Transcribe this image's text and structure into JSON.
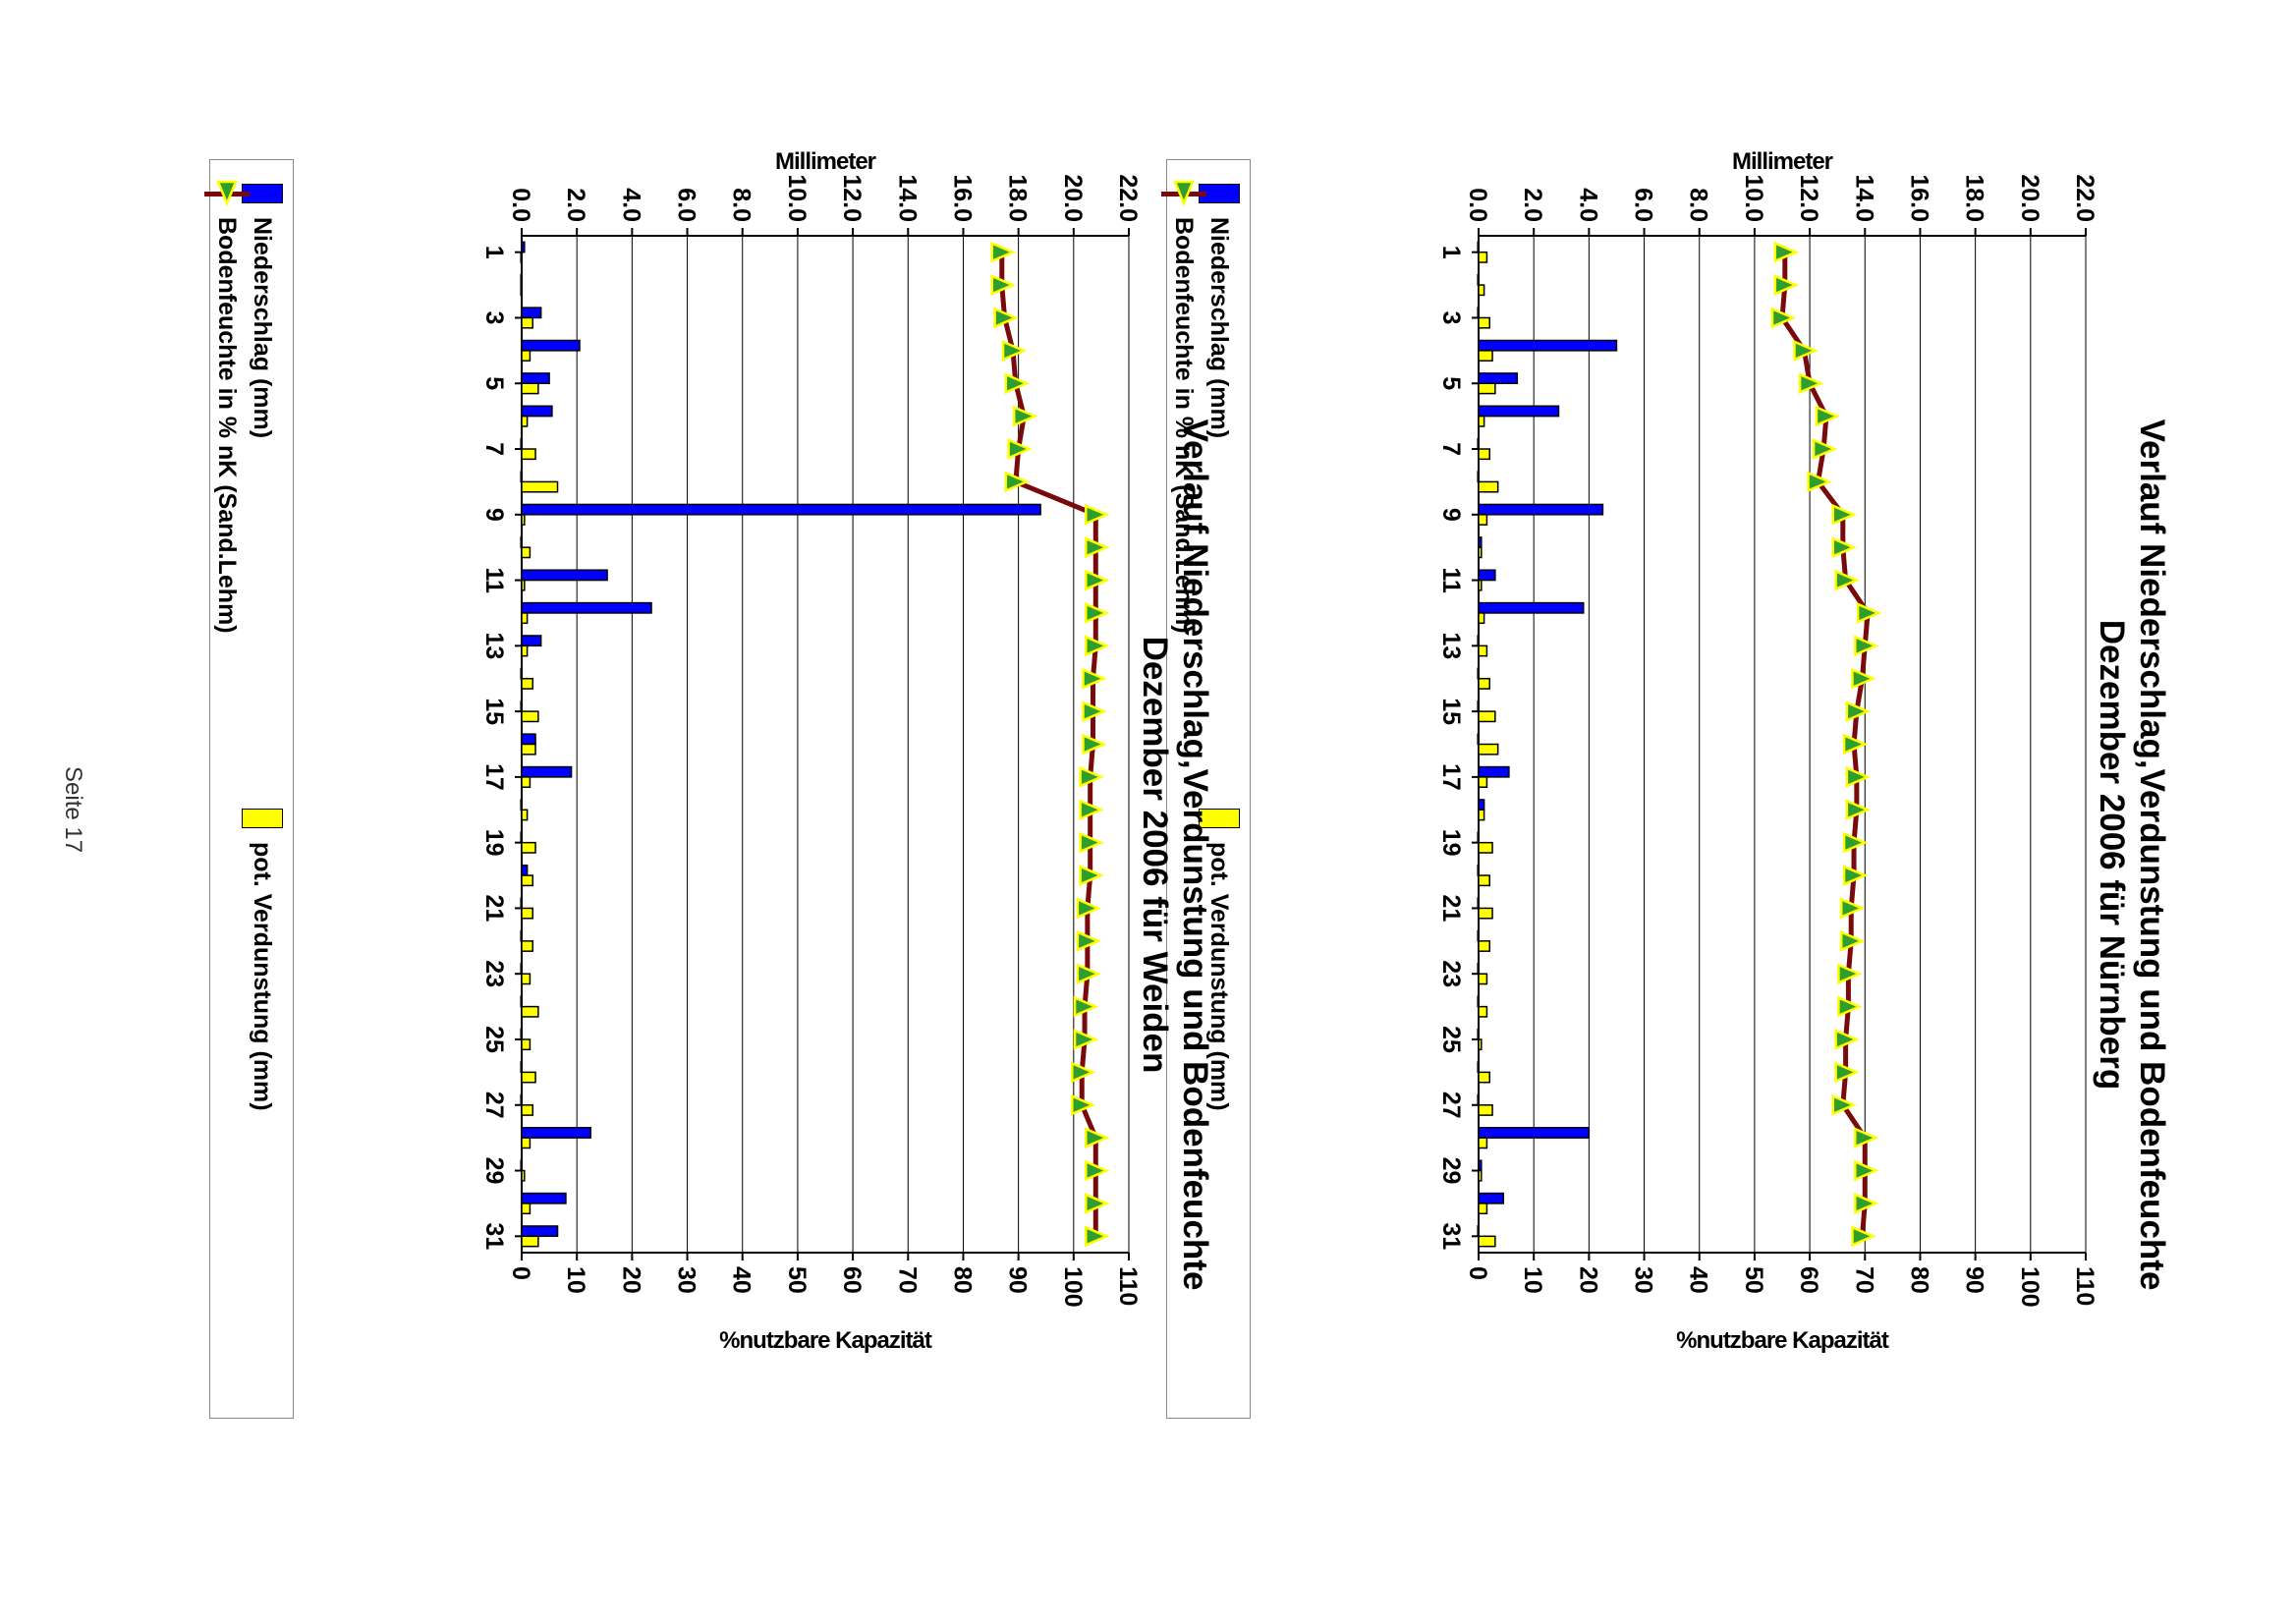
{
  "page": {
    "page_number": "Seite 17"
  },
  "legend": {
    "precip": "Niederschlag (mm)",
    "soil": "Bodenfeuchte in % nK (Sand.Lehm)",
    "evap": "pot. Verdunstung (mm)"
  },
  "colors": {
    "precip": "#0000ff",
    "evap": "#ffff00",
    "soil_line": "#7a0a0a",
    "marker_fill": "#2e9e2e",
    "marker_edge": "#ffff00"
  },
  "chart_data": [
    {
      "type": "bar",
      "title_line1": "Verlauf Niederschlag,Verdunstung und Bodenfeuchte",
      "title_line2": "Dezember 2006 für Nürnberg",
      "ylabel_left": "Millimeter",
      "ylabel_right": "%nutzbare Kapazität",
      "ylim_left": [
        0,
        22
      ],
      "ylim_right": [
        0,
        110
      ],
      "left_ticks": [
        "0.0",
        "2.0",
        "4.0",
        "6.0",
        "8.0",
        "10.0",
        "12.0",
        "14.0",
        "16.0",
        "18.0",
        "20.0",
        "22.0"
      ],
      "right_ticks": [
        "0",
        "10",
        "20",
        "30",
        "40",
        "50",
        "60",
        "70",
        "80",
        "90",
        "100",
        "110"
      ],
      "x_ticks": [
        "1",
        "3",
        "5",
        "7",
        "9",
        "11",
        "13",
        "15",
        "17",
        "19",
        "21",
        "23",
        "25",
        "27",
        "29",
        "31"
      ],
      "grid": true,
      "legend_position": "bottom",
      "categories": [
        1,
        2,
        3,
        4,
        5,
        6,
        7,
        8,
        9,
        10,
        11,
        12,
        13,
        14,
        15,
        16,
        17,
        18,
        19,
        20,
        21,
        22,
        23,
        24,
        25,
        26,
        27,
        28,
        29,
        30,
        31
      ],
      "series": [
        {
          "name": "Niederschlag (mm)",
          "type": "bar",
          "axis": "left",
          "values": [
            0,
            0,
            0,
            5.0,
            1.4,
            2.9,
            0,
            0,
            4.5,
            0.1,
            0.6,
            3.8,
            0,
            0,
            0,
            0,
            1.1,
            0.2,
            0,
            0,
            0,
            0,
            0,
            0,
            0,
            0,
            0,
            4.0,
            0.1,
            0.9,
            0
          ]
        },
        {
          "name": "pot. Verdunstung (mm)",
          "type": "bar",
          "axis": "left",
          "values": [
            0.3,
            0.2,
            0.4,
            0.5,
            0.6,
            0.2,
            0.4,
            0.7,
            0.3,
            0.1,
            0.1,
            0.2,
            0.3,
            0.4,
            0.6,
            0.7,
            0.3,
            0.2,
            0.5,
            0.4,
            0.5,
            0.4,
            0.3,
            0.3,
            0.1,
            0.4,
            0.5,
            0.3,
            0.1,
            0.3,
            0.6
          ]
        },
        {
          "name": "Bodenfeuchte in % nK (Sand.Lehm)",
          "type": "line",
          "axis": "right",
          "values": [
            55.5,
            55.5,
            55.0,
            59.0,
            60.0,
            63.0,
            62.5,
            61.5,
            66.0,
            66.0,
            66.5,
            70.5,
            70.0,
            69.5,
            68.5,
            68.0,
            68.5,
            68.5,
            68.0,
            68.0,
            67.5,
            67.5,
            67.0,
            67.0,
            66.5,
            66.5,
            66.0,
            70.0,
            70.0,
            70.0,
            69.5
          ]
        }
      ]
    },
    {
      "type": "bar",
      "title_line1": "Verlauf Niederschlag,Verdunstung und Bodenfeuchte",
      "title_line2": "Dezember 2006 für Weiden",
      "ylabel_left": "Millimeter",
      "ylabel_right": "%nutzbare Kapazität",
      "ylim_left": [
        0,
        22
      ],
      "ylim_right": [
        0,
        110
      ],
      "left_ticks": [
        "0.0",
        "2.0",
        "4.0",
        "6.0",
        "8.0",
        "10.0",
        "12.0",
        "14.0",
        "16.0",
        "18.0",
        "20.0",
        "22.0"
      ],
      "right_ticks": [
        "0",
        "10",
        "20",
        "30",
        "40",
        "50",
        "60",
        "70",
        "80",
        "90",
        "100",
        "110"
      ],
      "x_ticks": [
        "1",
        "3",
        "5",
        "7",
        "9",
        "11",
        "13",
        "15",
        "17",
        "19",
        "21",
        "23",
        "25",
        "27",
        "29",
        "31"
      ],
      "grid": true,
      "legend_position": "bottom",
      "categories": [
        1,
        2,
        3,
        4,
        5,
        6,
        7,
        8,
        9,
        10,
        11,
        12,
        13,
        14,
        15,
        16,
        17,
        18,
        19,
        20,
        21,
        22,
        23,
        24,
        25,
        26,
        27,
        28,
        29,
        30,
        31
      ],
      "series": [
        {
          "name": "Niederschlag (mm)",
          "type": "bar",
          "axis": "left",
          "values": [
            0.1,
            0,
            0.7,
            2.1,
            1.0,
            1.1,
            0,
            0,
            18.8,
            0,
            3.1,
            4.7,
            0.7,
            0,
            0,
            0.5,
            1.8,
            0,
            0,
            0.2,
            0,
            0,
            0,
            0,
            0,
            0,
            0,
            2.5,
            0,
            1.6,
            1.3
          ]
        },
        {
          "name": "pot. Verdunstung (mm)",
          "type": "bar",
          "axis": "left",
          "values": [
            0,
            0,
            0.4,
            0.3,
            0.6,
            0.2,
            0.5,
            1.3,
            0.1,
            0.3,
            0.1,
            0.2,
            0.2,
            0.4,
            0.6,
            0.5,
            0.3,
            0.2,
            0.5,
            0.4,
            0.4,
            0.4,
            0.3,
            0.6,
            0.3,
            0.5,
            0.4,
            0.3,
            0.1,
            0.3,
            0.6
          ]
        },
        {
          "name": "Bodenfeuchte in % nK (Sand.Lehm)",
          "type": "line",
          "axis": "right",
          "values": [
            87.0,
            87.0,
            87.5,
            89.0,
            89.5,
            91.0,
            90.0,
            89.5,
            104.0,
            104.0,
            104.0,
            104.0,
            104.0,
            103.5,
            103.5,
            103.5,
            103.0,
            103.0,
            103.0,
            103.0,
            102.5,
            102.5,
            102.5,
            102.0,
            102.0,
            101.5,
            101.5,
            104.0,
            104.0,
            104.0,
            104.0
          ]
        }
      ]
    }
  ]
}
